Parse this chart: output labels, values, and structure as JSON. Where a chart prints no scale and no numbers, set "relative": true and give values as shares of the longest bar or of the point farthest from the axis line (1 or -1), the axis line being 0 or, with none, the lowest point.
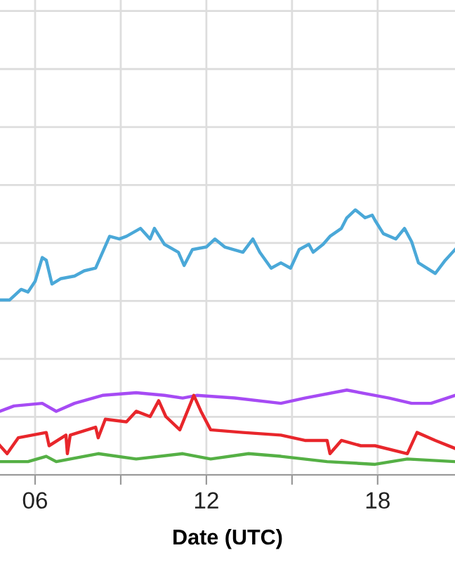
{
  "chart_data": {
    "type": "line",
    "relative": true,
    "xlabel": "Date (UTC)",
    "grid": true,
    "marker": "none",
    "line_style": "solid",
    "xlim": [
      4.77,
      20.71
    ],
    "xticks": [
      {
        "value": 6,
        "label": "06"
      },
      {
        "value": 9,
        "label": null
      },
      {
        "value": 12,
        "label": "12"
      },
      {
        "value": 15,
        "label": null
      },
      {
        "value": 18,
        "label": "18"
      }
    ],
    "series": [
      {
        "color": "#4aa8d8",
        "x": [
          4.77,
          5.11,
          5.51,
          5.75,
          6.0,
          6.25,
          6.39,
          6.59,
          6.89,
          7.38,
          7.72,
          8.12,
          8.61,
          8.95,
          9.2,
          9.69,
          10.03,
          10.18,
          10.53,
          11.02,
          11.22,
          11.51,
          12.0,
          12.3,
          12.64,
          13.28,
          13.63,
          13.87,
          14.27,
          14.61,
          14.95,
          15.25,
          15.59,
          15.74,
          16.09,
          16.33,
          16.73,
          16.92,
          17.22,
          17.56,
          17.81,
          17.91,
          18.2,
          18.64,
          18.94,
          19.19,
          19.43,
          20.02,
          20.37,
          20.71
        ],
        "values": [
          0.66,
          0.66,
          0.7,
          0.69,
          0.73,
          0.82,
          0.81,
          0.72,
          0.74,
          0.75,
          0.77,
          0.78,
          0.9,
          0.89,
          0.9,
          0.93,
          0.89,
          0.93,
          0.87,
          0.84,
          0.79,
          0.85,
          0.86,
          0.89,
          0.86,
          0.84,
          0.89,
          0.84,
          0.78,
          0.8,
          0.78,
          0.85,
          0.87,
          0.84,
          0.87,
          0.9,
          0.93,
          0.97,
          1.0,
          0.97,
          0.98,
          0.96,
          0.91,
          0.89,
          0.93,
          0.88,
          0.8,
          0.76,
          0.81,
          0.85
        ]
      },
      {
        "color": "#a64bf4",
        "x": [
          4.77,
          5.26,
          6.25,
          6.74,
          7.38,
          8.36,
          9.54,
          10.53,
          11.17,
          11.66,
          12.99,
          14.61,
          15.45,
          16.92,
          17.91,
          18.4,
          19.19,
          19.87,
          20.71
        ],
        "values": [
          0.24,
          0.26,
          0.27,
          0.24,
          0.27,
          0.3,
          0.31,
          0.3,
          0.29,
          0.3,
          0.29,
          0.27,
          0.29,
          0.32,
          0.3,
          0.29,
          0.27,
          0.27,
          0.3
        ]
      },
      {
        "color": "#e8262b",
        "x": [
          4.77,
          5.02,
          5.41,
          6.39,
          6.49,
          7.08,
          7.13,
          7.23,
          8.12,
          8.21,
          8.46,
          9.2,
          9.54,
          10.03,
          10.33,
          10.58,
          11.07,
          11.56,
          11.81,
          12.15,
          13.28,
          14.61,
          15.45,
          16.23,
          16.33,
          16.73,
          17.41,
          17.91,
          19.04,
          19.38,
          20.02,
          20.71
        ],
        "values": [
          0.11,
          0.08,
          0.14,
          0.16,
          0.11,
          0.15,
          0.08,
          0.15,
          0.18,
          0.14,
          0.21,
          0.2,
          0.24,
          0.22,
          0.28,
          0.22,
          0.17,
          0.3,
          0.24,
          0.17,
          0.16,
          0.15,
          0.13,
          0.13,
          0.08,
          0.13,
          0.11,
          0.11,
          0.08,
          0.16,
          0.13,
          0.1
        ]
      },
      {
        "color": "#55b045",
        "x": [
          4.77,
          5.75,
          6.39,
          6.74,
          8.21,
          9.54,
          11.17,
          12.15,
          13.48,
          14.61,
          16.23,
          17.91,
          19.04,
          20.71
        ],
        "values": [
          0.05,
          0.05,
          0.07,
          0.05,
          0.08,
          0.06,
          0.08,
          0.06,
          0.08,
          0.07,
          0.05,
          0.04,
          0.06,
          0.05
        ]
      }
    ]
  }
}
